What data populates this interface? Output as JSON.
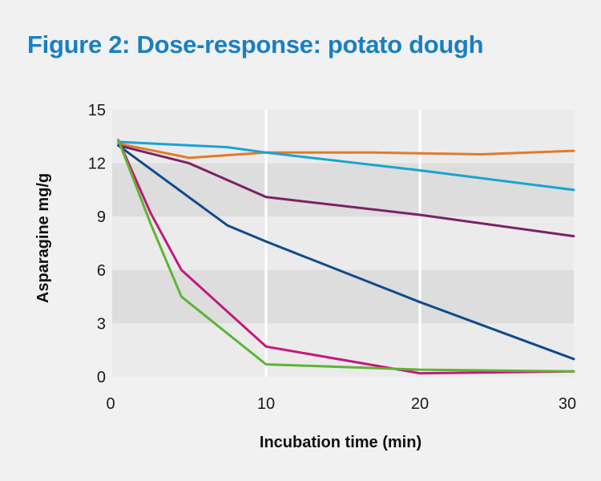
{
  "chart_data": {
    "type": "line",
    "title": "Figure 2: Dose-response: potato dough",
    "xlabel": "Incubation time (min)",
    "ylabel": "Asparagine mg/g",
    "xlim": [
      0,
      30
    ],
    "ylim": [
      0,
      15
    ],
    "x_ticks": [
      "0",
      "10",
      "20",
      "30"
    ],
    "y_ticks": [
      "0",
      "3",
      "6",
      "9",
      "12",
      "15"
    ],
    "grid": "alternating horizontal bands with vertical white gridlines at 10 and 20",
    "legend": "none",
    "series": [
      {
        "color": "#e07b2a",
        "points": [
          [
            0.4,
            13.1
          ],
          [
            5,
            12.3
          ],
          [
            10,
            12.6
          ],
          [
            17,
            12.6
          ],
          [
            24,
            12.5
          ],
          [
            30,
            12.7
          ]
        ]
      },
      {
        "color": "#1aa3d4",
        "points": [
          [
            0.4,
            13.2
          ],
          [
            7.5,
            12.9
          ],
          [
            10,
            12.6
          ],
          [
            20,
            11.6
          ],
          [
            30,
            10.5
          ]
        ]
      },
      {
        "color": "#7b2266",
        "points": [
          [
            0.4,
            13.0
          ],
          [
            5,
            12.0
          ],
          [
            10,
            10.1
          ],
          [
            20,
            9.1
          ],
          [
            30,
            7.9
          ]
        ]
      },
      {
        "color": "#0f4c8a",
        "points": [
          [
            0.4,
            13.0
          ],
          [
            7.5,
            8.5
          ],
          [
            10,
            7.6
          ],
          [
            20,
            4.2
          ],
          [
            30,
            1.0
          ]
        ]
      },
      {
        "color": "#c2197d",
        "points": [
          [
            0.4,
            13.3
          ],
          [
            2.5,
            9.2
          ],
          [
            4.5,
            6.0
          ],
          [
            10,
            1.7
          ],
          [
            20,
            0.2
          ],
          [
            30,
            0.3
          ]
        ]
      },
      {
        "color": "#5cb534",
        "points": [
          [
            0.4,
            13.3
          ],
          [
            2.5,
            8.6
          ],
          [
            4.5,
            4.5
          ],
          [
            10,
            0.7
          ],
          [
            20,
            0.4
          ],
          [
            30,
            0.3
          ]
        ]
      }
    ]
  }
}
